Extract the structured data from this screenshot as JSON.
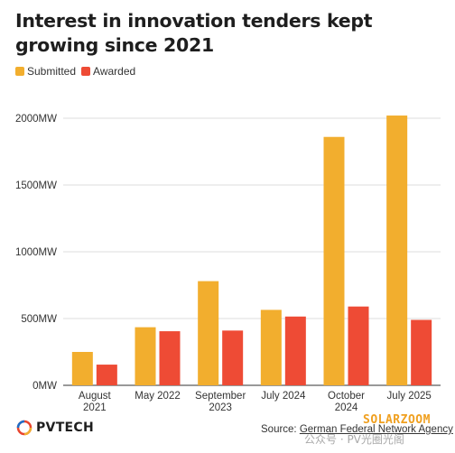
{
  "title": "Interest in innovation tenders kept growing since 2021",
  "legend": {
    "submitted": "Submitted",
    "awarded": "Awarded"
  },
  "colors": {
    "submitted": "#F2AE2E",
    "awarded": "#EE4B35",
    "grid": "#dcdcdc",
    "axis": "#333333"
  },
  "chart_data": {
    "type": "bar",
    "categories": [
      [
        "August",
        "2021"
      ],
      [
        "May 2022"
      ],
      [
        "September",
        "2023"
      ],
      [
        "July 2024"
      ],
      [
        "October",
        "2024"
      ],
      [
        "July 2025"
      ]
    ],
    "series": [
      {
        "name": "Submitted",
        "values": [
          250,
          435,
          780,
          565,
          1860,
          2020
        ]
      },
      {
        "name": "Awarded",
        "values": [
          155,
          405,
          410,
          515,
          590,
          490
        ]
      }
    ],
    "ylim": [
      0,
      2000
    ],
    "yticks": [
      0,
      500,
      1000,
      1500,
      2000
    ],
    "ytick_labels": [
      "0MW",
      "500MW",
      "1000MW",
      "1500MW",
      "2000MW"
    ],
    "legend_position": "top-left",
    "grid": true
  },
  "footer": {
    "logo_text": "PVTECH",
    "source_prefix": "Source: ",
    "source_name": "German Federal Network Agency"
  },
  "watermark": {
    "brand": "SOLARZOOM",
    "account": "公众号 · PV光圈光阁"
  }
}
